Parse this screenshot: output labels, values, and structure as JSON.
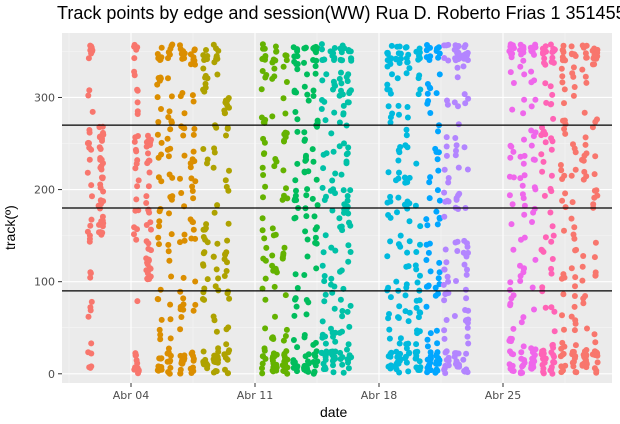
{
  "chart_data": {
    "type": "scatter",
    "title": "Track points by edge and session(WW) Rua D. Roberto Frias 1 351455",
    "xlabel": "date",
    "ylabel": "track(º)",
    "ylim": [
      -10,
      370
    ],
    "y_ticks": [
      0,
      100,
      200,
      300
    ],
    "x_ticks": [
      {
        "label": "Abr 04",
        "day": 4
      },
      {
        "label": "Abr 11",
        "day": 11
      },
      {
        "label": "Abr 18",
        "day": 18
      },
      {
        "label": "Abr 25",
        "day": 25
      }
    ],
    "hlines": [
      90,
      180,
      270
    ],
    "grid": true,
    "legend": "none",
    "sessions": [
      {
        "color": "#F8766D",
        "columns": [
          {
            "day": 1.7,
            "lo": 0,
            "hi": 358
          },
          {
            "day": 2.3,
            "lo": 150,
            "hi": 270
          },
          {
            "day": 4.3,
            "lo": 0,
            "hi": 358
          },
          {
            "day": 5.0,
            "lo": 100,
            "hi": 260
          }
        ]
      },
      {
        "color": "#DB8E00",
        "columns": [
          {
            "day": 5.6,
            "lo": 0,
            "hi": 358
          },
          {
            "day": 6.2,
            "lo": 0,
            "hi": 358
          },
          {
            "day": 6.9,
            "lo": 0,
            "hi": 358
          },
          {
            "day": 7.5,
            "lo": 0,
            "hi": 358
          }
        ]
      },
      {
        "color": "#AEA200",
        "columns": [
          {
            "day": 8.2,
            "lo": 0,
            "hi": 358
          },
          {
            "day": 8.8,
            "lo": 0,
            "hi": 358
          },
          {
            "day": 9.4,
            "lo": 0,
            "hi": 300
          }
        ]
      },
      {
        "color": "#64B200",
        "columns": [
          {
            "day": 11.5,
            "lo": 0,
            "hi": 358
          },
          {
            "day": 12.1,
            "lo": 0,
            "hi": 358
          },
          {
            "day": 12.7,
            "lo": 0,
            "hi": 358
          }
        ]
      },
      {
        "color": "#00BD5C",
        "columns": [
          {
            "day": 13.3,
            "lo": 0,
            "hi": 358
          },
          {
            "day": 13.9,
            "lo": 0,
            "hi": 358
          },
          {
            "day": 14.4,
            "lo": 0,
            "hi": 358
          }
        ]
      },
      {
        "color": "#00C1A7",
        "columns": [
          {
            "day": 14.9,
            "lo": 0,
            "hi": 358
          },
          {
            "day": 15.4,
            "lo": 0,
            "hi": 358
          },
          {
            "day": 15.9,
            "lo": 0,
            "hi": 358
          },
          {
            "day": 16.3,
            "lo": 0,
            "hi": 358
          }
        ]
      },
      {
        "color": "#00BADE",
        "columns": [
          {
            "day": 18.6,
            "lo": 0,
            "hi": 358
          },
          {
            "day": 19.1,
            "lo": 0,
            "hi": 358
          },
          {
            "day": 19.6,
            "lo": 0,
            "hi": 358
          },
          {
            "day": 20.2,
            "lo": 0,
            "hi": 358
          }
        ]
      },
      {
        "color": "#00A6FF",
        "columns": [
          {
            "day": 20.8,
            "lo": 0,
            "hi": 358
          },
          {
            "day": 21.3,
            "lo": 0,
            "hi": 358
          }
        ]
      },
      {
        "color": "#B385FF",
        "columns": [
          {
            "day": 21.8,
            "lo": 0,
            "hi": 358
          },
          {
            "day": 22.4,
            "lo": 0,
            "hi": 358
          },
          {
            "day": 22.9,
            "lo": 0,
            "hi": 358
          }
        ]
      },
      {
        "color": "#EF67EB",
        "columns": [
          {
            "day": 25.5,
            "lo": 0,
            "hi": 358
          },
          {
            "day": 26.1,
            "lo": 0,
            "hi": 358
          },
          {
            "day": 26.7,
            "lo": 0,
            "hi": 358
          }
        ]
      },
      {
        "color": "#FF63B6",
        "columns": [
          {
            "day": 27.3,
            "lo": 0,
            "hi": 358
          },
          {
            "day": 27.8,
            "lo": 0,
            "hi": 358
          }
        ]
      },
      {
        "color": "#F8766D",
        "columns": [
          {
            "day": 28.4,
            "lo": 0,
            "hi": 358
          },
          {
            "day": 29.0,
            "lo": 0,
            "hi": 358
          },
          {
            "day": 29.6,
            "lo": 0,
            "hi": 358
          },
          {
            "day": 30.2,
            "lo": 0,
            "hi": 358
          }
        ]
      }
    ]
  }
}
